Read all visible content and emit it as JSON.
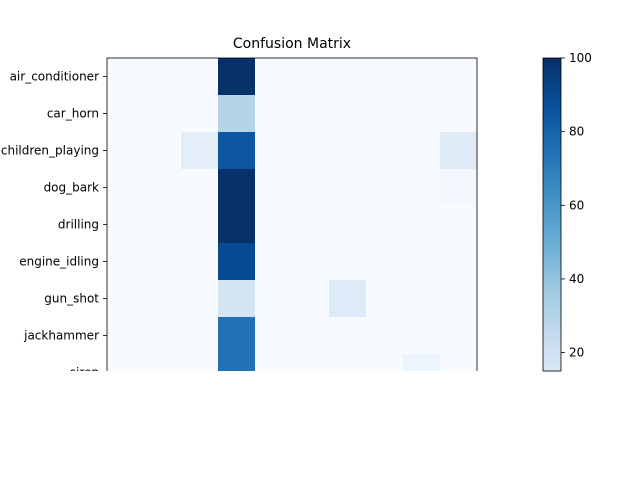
{
  "chart_data": {
    "type": "heatmap",
    "title": "Confusion Matrix",
    "xlabel": "",
    "ylabel": "",
    "row_labels": [
      "air_conditioner",
      "car_horn",
      "children_playing",
      "dog_bark",
      "drilling",
      "engine_idling",
      "gun_shot",
      "jackhammer",
      "siren"
    ],
    "values": [
      [
        0,
        0,
        0,
        100,
        0,
        0,
        0,
        0,
        0,
        0
      ],
      [
        0,
        0,
        0,
        30,
        0,
        0,
        0,
        0,
        0,
        0
      ],
      [
        0,
        0,
        10,
        85,
        0,
        0,
        0,
        0,
        0,
        12
      ],
      [
        0,
        0,
        0,
        100,
        0,
        0,
        0,
        0,
        0,
        2
      ],
      [
        0,
        0,
        0,
        100,
        0,
        0,
        0,
        0,
        0,
        0
      ],
      [
        0,
        0,
        0,
        90,
        0,
        0,
        0,
        0,
        0,
        0
      ],
      [
        0,
        0,
        0,
        18,
        0,
        0,
        13,
        0,
        0,
        0
      ],
      [
        0,
        0,
        0,
        75,
        0,
        0,
        0,
        0,
        0,
        0
      ],
      [
        0,
        0,
        0,
        75,
        0,
        0,
        0,
        0,
        5,
        0
      ]
    ],
    "colormap": "Blues",
    "colorbar": {
      "min": 15,
      "max": 100,
      "ticks": [
        20,
        40,
        60,
        80,
        100
      ]
    }
  }
}
